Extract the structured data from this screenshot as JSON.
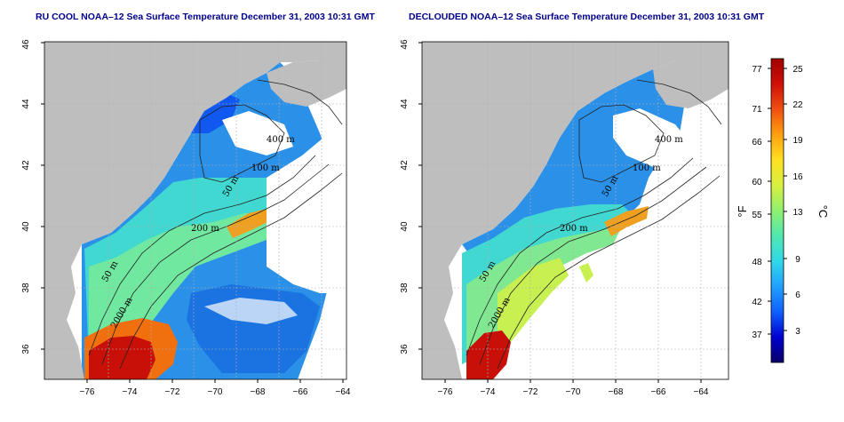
{
  "panels": [
    {
      "id": "left",
      "title": "RU COOL NOAA–12 Sea Surface Temperature December 31, 2003 10:31 GMT",
      "contour_labels": [
        "400 m",
        "100 m",
        "50 m",
        "200 m",
        "50 m",
        "2000 m"
      ]
    },
    {
      "id": "right",
      "title": "DECLOUDED NOAA–12 Sea Surface Temperature December 31, 2003 10:31 GMT",
      "contour_labels": [
        "400 m",
        "100 m",
        "50 m",
        "200 m",
        "50 m",
        "2000 m"
      ]
    }
  ],
  "axes": {
    "x_ticks": [
      "−76",
      "−74",
      "−72",
      "−70",
      "−68",
      "−66",
      "−64"
    ],
    "y_ticks": [
      "36",
      "38",
      "40",
      "42",
      "44",
      "46"
    ]
  },
  "colorbar": {
    "fahrenheit_ticks": [
      "77",
      "71",
      "66",
      "60",
      "55",
      "48",
      "42",
      "37"
    ],
    "celsius_ticks": [
      "25",
      "22",
      "19",
      "16",
      "13",
      "9",
      "6",
      "3"
    ],
    "fahrenheit_unit": "°F",
    "celsius_unit": "°C",
    "colors": [
      "#08006a",
      "#0000d0",
      "#1060ff",
      "#20a0ff",
      "#30d8e8",
      "#50e8b0",
      "#90f070",
      "#d8f040",
      "#ffe020",
      "#ffa010",
      "#f05010",
      "#d01008",
      "#a00000"
    ]
  },
  "colors": {
    "land": "#bebebe",
    "title": "#00008b",
    "grid": "#b0b0b0"
  }
}
